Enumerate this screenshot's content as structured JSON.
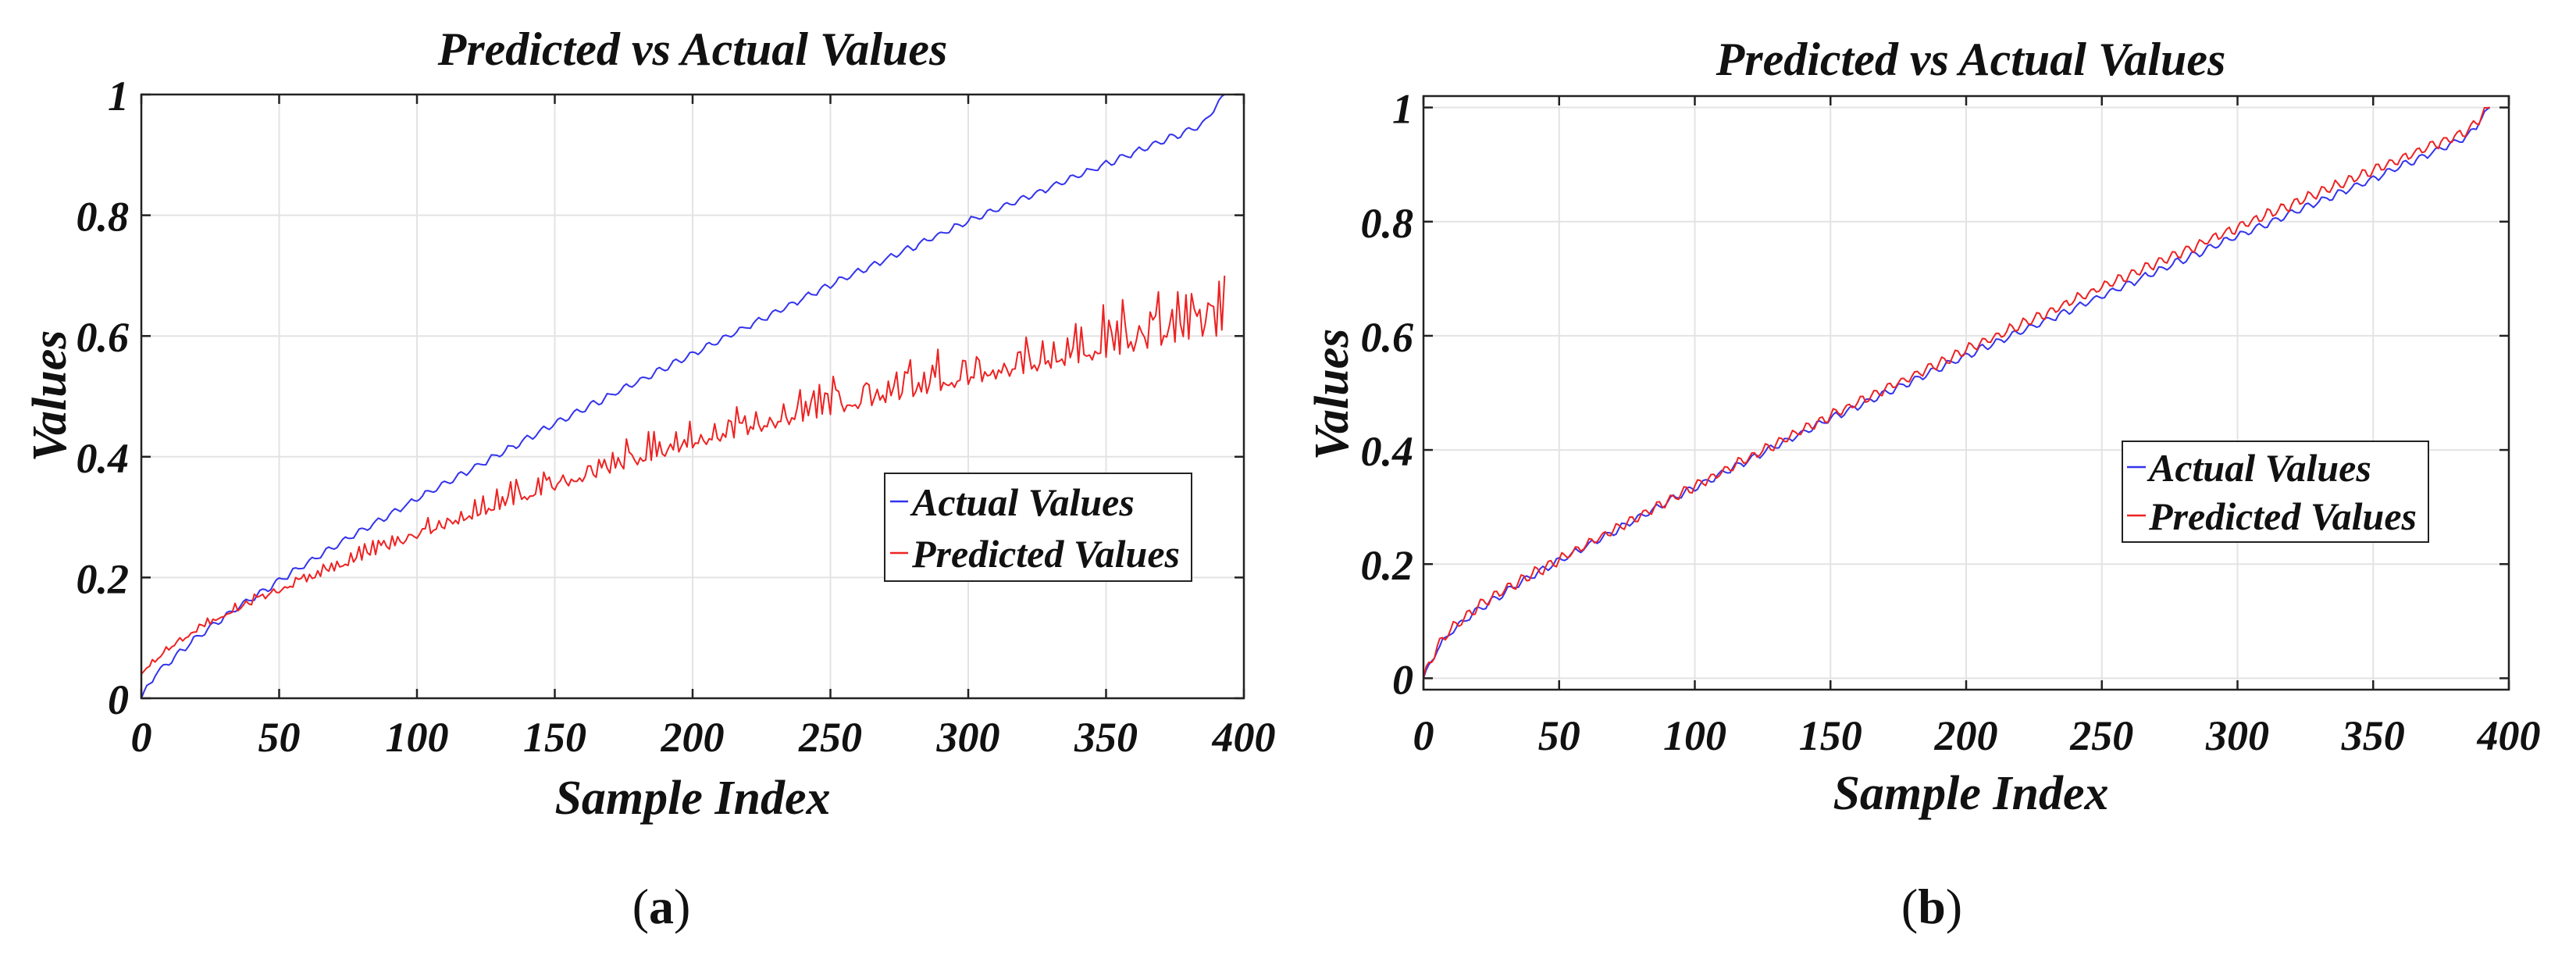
{
  "chart_data": [
    {
      "type": "line",
      "panel_label": "(a)",
      "panel_letter": "a",
      "title": "Predicted vs Actual Values",
      "xlabel": "Sample Index",
      "ylabel": "Values",
      "xlim": [
        0,
        400
      ],
      "ylim": [
        0,
        1
      ],
      "xticks": [
        0,
        50,
        100,
        150,
        200,
        250,
        300,
        350,
        400
      ],
      "yticks": [
        0,
        0.2,
        0.4,
        0.6,
        0.8,
        1
      ],
      "xtick_labels": [
        "0",
        "50",
        "100",
        "150",
        "200",
        "250",
        "300",
        "350",
        "400"
      ],
      "ytick_labels": [
        "0",
        "0.2",
        "0.4",
        "0.6",
        "0.8",
        "1"
      ],
      "grid": true,
      "legend_position": "center-right",
      "num_points": 393,
      "series": [
        {
          "name": "Actual Values",
          "color": "#3333ee",
          "x": [
            0,
            5,
            10,
            20,
            30,
            40,
            50,
            75,
            100,
            150,
            200,
            250,
            300,
            350,
            385,
            393
          ],
          "y": [
            0.0,
            0.04,
            0.06,
            0.1,
            0.135,
            0.165,
            0.195,
            0.265,
            0.33,
            0.455,
            0.57,
            0.685,
            0.79,
            0.885,
            0.95,
            1.0
          ],
          "oscillation": {
            "amplitude": 0.005,
            "period": 6
          }
        },
        {
          "name": "Predicted Values",
          "color": "#ee2222",
          "x": [
            0,
            5,
            10,
            20,
            30,
            40,
            50,
            75,
            100,
            150,
            200,
            250,
            300,
            350,
            385,
            393
          ],
          "y": [
            0.04,
            0.06,
            0.08,
            0.11,
            0.135,
            0.155,
            0.175,
            0.22,
            0.265,
            0.345,
            0.415,
            0.47,
            0.52,
            0.565,
            0.6,
            0.6
          ],
          "oscillation": {
            "amplitude_start": 0.004,
            "amplitude_end": 0.055,
            "period": 5
          }
        }
      ]
    },
    {
      "type": "line",
      "panel_label": "(b)",
      "panel_letter": "b",
      "title": "Predicted vs Actual Values",
      "xlabel": "Sample Index",
      "ylabel": "Values",
      "xlim": [
        0,
        400
      ],
      "ylim": [
        -0.02,
        1.02
      ],
      "xticks": [
        0,
        50,
        100,
        150,
        200,
        250,
        300,
        350,
        400
      ],
      "yticks": [
        0,
        0.2,
        0.4,
        0.6,
        0.8,
        1
      ],
      "xtick_labels": [
        "0",
        "50",
        "100",
        "150",
        "200",
        "250",
        "300",
        "350",
        "400"
      ],
      "ytick_labels": [
        "0",
        "0.2",
        "0.4",
        "0.6",
        "0.8",
        "1"
      ],
      "grid": true,
      "legend_position": "center-right",
      "num_points": 393,
      "series": [
        {
          "name": "Actual Values",
          "color": "#3333ee",
          "x": [
            0,
            5,
            10,
            20,
            30,
            40,
            50,
            75,
            100,
            150,
            200,
            250,
            300,
            350,
            385,
            393
          ],
          "y": [
            0.0,
            0.05,
            0.08,
            0.12,
            0.15,
            0.18,
            0.205,
            0.27,
            0.335,
            0.455,
            0.565,
            0.67,
            0.775,
            0.875,
            0.95,
            1.0
          ],
          "oscillation": {
            "amplitude": 0.006,
            "period": 6
          }
        },
        {
          "name": "Predicted Values",
          "color": "#ee2222",
          "x": [
            0,
            5,
            10,
            20,
            30,
            40,
            50,
            75,
            100,
            150,
            200,
            250,
            300,
            350,
            385,
            393
          ],
          "y": [
            0.0,
            0.055,
            0.085,
            0.125,
            0.155,
            0.182,
            0.208,
            0.272,
            0.337,
            0.46,
            0.575,
            0.685,
            0.79,
            0.89,
            0.96,
            1.0
          ],
          "oscillation": {
            "amplitude": 0.008,
            "period": 5
          }
        }
      ]
    }
  ]
}
